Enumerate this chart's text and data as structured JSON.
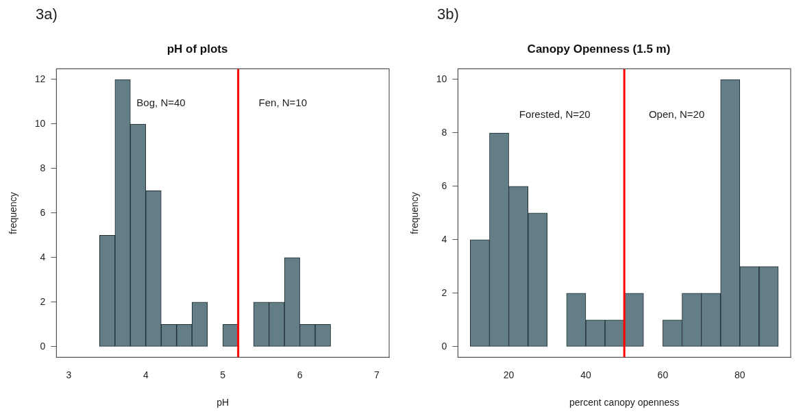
{
  "chart_data": [
    {
      "type": "histogram",
      "title": "pH of plots",
      "xlabel": "pH",
      "ylabel": "frequency",
      "color": "#647e88",
      "bins": [
        3.4,
        3.6,
        3.8,
        4.0,
        4.2,
        4.4,
        4.6,
        4.8,
        5.0,
        5.2,
        5.4,
        5.6,
        5.8,
        6.0,
        6.2,
        6.4
      ],
      "values": [
        5,
        12,
        10,
        7,
        1,
        1,
        2,
        0,
        1,
        0,
        2,
        2,
        4,
        1,
        1
      ],
      "xlim": [
        2.84,
        7.16
      ],
      "xticks": [
        3,
        4,
        5,
        6,
        7
      ],
      "ylim": [
        -0.48,
        12.48
      ],
      "yticks": [
        0,
        2,
        4,
        6,
        8,
        10,
        12
      ],
      "ref_lines": [
        {
          "axis": "x",
          "value": 5.2,
          "color": "#ff0000"
        }
      ],
      "annotations": [
        "3a)",
        "Bog, N=40",
        "Fen, N=10"
      ]
    },
    {
      "type": "histogram",
      "title": "Canopy Openness (1.5 m)",
      "xlabel": "percent canopy openness",
      "ylabel": "frequency",
      "color": "#647e88",
      "bins": [
        10,
        15,
        20,
        25,
        30,
        35,
        40,
        45,
        50,
        55,
        60,
        65,
        70,
        75,
        80,
        85,
        90
      ],
      "values": [
        4,
        8,
        6,
        5,
        0,
        2,
        1,
        1,
        2,
        0,
        1,
        2,
        2,
        10,
        3,
        3
      ],
      "xlim": [
        6.8,
        93.2
      ],
      "xticks": [
        20,
        40,
        60,
        80
      ],
      "ylim": [
        -0.4,
        10.4
      ],
      "yticks": [
        0,
        2,
        4,
        6,
        8,
        10
      ],
      "ref_lines": [
        {
          "axis": "x",
          "value": 50,
          "color": "#ff0000"
        }
      ],
      "annotations": [
        "3b)",
        "Forested, N=20",
        "Open, N=20"
      ]
    }
  ]
}
